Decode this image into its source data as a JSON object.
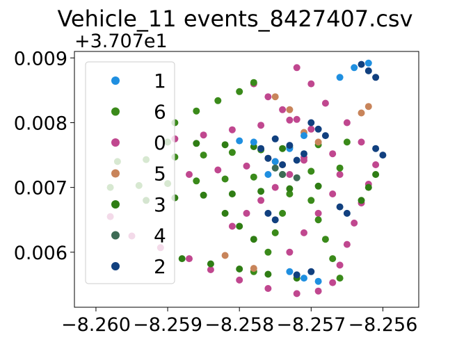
{
  "chart_data": {
    "type": "scatter",
    "title": "Vehicle_11 events_8427407.csv",
    "y_offset_label": "+3.707e1",
    "xlim": [
      -8.2603,
      -8.2555
    ],
    "ylim": [
      0.00515,
      0.0091
    ],
    "x_ticks": [
      -8.26,
      -8.259,
      -8.258,
      -8.257,
      -8.256
    ],
    "x_tick_labels": [
      "−8.260",
      "−8.259",
      "−8.258",
      "−8.257",
      "−8.256"
    ],
    "y_ticks": [
      0.006,
      0.007,
      0.008,
      0.009
    ],
    "y_tick_labels": [
      "0.006",
      "0.007",
      "0.008",
      "0.009"
    ],
    "legend_position": "upper-left",
    "legend": [
      {
        "label": "1",
        "color": "#1f8fe0"
      },
      {
        "label": "6",
        "color": "#3a8a1a"
      },
      {
        "label": "0",
        "color": "#c0478f"
      },
      {
        "label": "5",
        "color": "#c8845a"
      },
      {
        "label": "3",
        "color": "#2f7d14"
      },
      {
        "label": "4",
        "color": "#3d6b55"
      },
      {
        "label": "2",
        "color": "#11407f"
      }
    ],
    "series": [
      {
        "name": "0",
        "color": "#c0478f",
        "points": [
          [
            -8.2598,
            0.00655
          ],
          [
            -8.2595,
            0.00625
          ],
          [
            -8.2591,
            0.00607
          ],
          [
            -8.2587,
            0.0059
          ],
          [
            -8.2584,
            0.00573
          ],
          [
            -8.258,
            0.00557
          ],
          [
            -8.2576,
            0.00544
          ],
          [
            -8.2572,
            0.00536
          ],
          [
            -8.2569,
            0.0054
          ],
          [
            -8.2567,
            0.00553
          ],
          [
            -8.2566,
            0.0058
          ],
          [
            -8.2565,
            0.00612
          ],
          [
            -8.2564,
            0.00645
          ],
          [
            -8.2563,
            0.00676
          ],
          [
            -8.2562,
            0.00705
          ],
          [
            -8.2561,
            0.00735
          ],
          [
            -8.2563,
            0.0077
          ],
          [
            -8.2565,
            0.008
          ],
          [
            -8.2568,
            0.0083
          ],
          [
            -8.257,
            0.0086
          ],
          [
            -8.2572,
            0.00885
          ],
          [
            -8.2587,
            0.0072
          ],
          [
            -8.2583,
            0.00727
          ],
          [
            -8.2579,
            0.00733
          ],
          [
            -8.2575,
            0.0074
          ],
          [
            -8.2571,
            0.00746
          ],
          [
            -8.2567,
            0.00752
          ],
          [
            -8.2589,
            0.00775
          ],
          [
            -8.2585,
            0.00781
          ],
          [
            -8.2581,
            0.00789
          ],
          [
            -8.2577,
            0.00796
          ],
          [
            -8.2573,
            0.00804
          ],
          [
            -8.2581,
            0.0064
          ],
          [
            -8.2579,
            0.0066
          ],
          [
            -8.2577,
            0.0068
          ],
          [
            -8.2575,
            0.007
          ],
          [
            -8.2573,
            0.0072
          ],
          [
            -8.2571,
            0.00742
          ],
          [
            -8.2573,
            0.006
          ],
          [
            -8.2571,
            0.0063
          ],
          [
            -8.2569,
            0.0066
          ],
          [
            -8.2567,
            0.0069
          ],
          [
            -8.2566,
            0.0072
          ],
          [
            -8.2578,
            0.0086
          ],
          [
            -8.2576,
            0.0084
          ],
          [
            -8.2574,
            0.0082
          ],
          [
            -8.2572,
            0.00805
          ],
          [
            -8.257,
            0.0079
          ]
        ]
      },
      {
        "name": "6",
        "color": "#3a8a1a",
        "points": [
          [
            -8.2598,
            0.007
          ],
          [
            -8.2594,
            0.00703
          ],
          [
            -8.259,
            0.00706
          ],
          [
            -8.2586,
            0.0071
          ],
          [
            -8.2582,
            0.00713
          ],
          [
            -8.2578,
            0.00716
          ],
          [
            -8.2574,
            0.0072
          ],
          [
            -8.257,
            0.00725
          ],
          [
            -8.2566,
            0.0073
          ],
          [
            -8.2597,
            0.0074
          ],
          [
            -8.2593,
            0.00743
          ],
          [
            -8.2589,
            0.00747
          ],
          [
            -8.2585,
            0.0075
          ],
          [
            -8.2581,
            0.00754
          ],
          [
            -8.2577,
            0.00758
          ],
          [
            -8.2573,
            0.00762
          ],
          [
            -8.2569,
            0.00766
          ],
          [
            -8.2565,
            0.0077
          ],
          [
            -8.2589,
            0.008
          ],
          [
            -8.2586,
            0.00818
          ],
          [
            -8.2583,
            0.00834
          ],
          [
            -8.258,
            0.00848
          ],
          [
            -8.2578,
            0.00862
          ],
          [
            -8.2578,
            0.0057
          ],
          [
            -8.2576,
            0.006
          ],
          [
            -8.2575,
            0.0063
          ],
          [
            -8.2574,
            0.0066
          ],
          [
            -8.2573,
            0.0069
          ],
          [
            -8.2566,
            0.0056
          ],
          [
            -8.2567,
            0.0059
          ],
          [
            -8.2568,
            0.0062
          ],
          [
            -8.2569,
            0.0065
          ],
          [
            -8.257,
            0.0068
          ]
        ]
      },
      {
        "name": "3",
        "color": "#2f7d14",
        "points": [
          [
            -8.2593,
            0.0068
          ],
          [
            -8.2589,
            0.00684
          ],
          [
            -8.2585,
            0.00688
          ],
          [
            -8.2581,
            0.0069
          ],
          [
            -8.2577,
            0.00694
          ],
          [
            -8.2573,
            0.00698
          ],
          [
            -8.2569,
            0.00702
          ],
          [
            -8.259,
            0.0077
          ],
          [
            -8.2586,
            0.00768
          ],
          [
            -8.2582,
            0.00766
          ],
          [
            -8.2578,
            0.00763
          ],
          [
            -8.2574,
            0.0076
          ],
          [
            -8.2588,
            0.0059
          ],
          [
            -8.2584,
            0.00582
          ],
          [
            -8.258,
            0.00574
          ],
          [
            -8.2576,
            0.00566
          ],
          [
            -8.2572,
            0.0056
          ],
          [
            -8.2563,
            0.0068
          ],
          [
            -8.2562,
            0.007
          ],
          [
            -8.2561,
            0.0072
          ],
          [
            -8.2582,
            0.0066
          ],
          [
            -8.258,
            0.0064
          ],
          [
            -8.2578,
            0.0062
          ]
        ]
      },
      {
        "name": "5",
        "color": "#c8845a",
        "points": [
          [
            -8.2575,
            0.0084
          ],
          [
            -8.2573,
            0.0082
          ],
          [
            -8.2571,
            0.00785
          ],
          [
            -8.2569,
            0.0077
          ],
          [
            -8.2563,
            0.00815
          ],
          [
            -8.2562,
            0.00825
          ],
          [
            -8.2576,
            0.00745
          ],
          [
            -8.2574,
            0.00735
          ],
          [
            -8.2578,
            0.00575
          ],
          [
            -8.2582,
            0.00595
          ]
        ]
      },
      {
        "name": "1",
        "color": "#1f8fe0",
        "points": [
          [
            -8.2576,
            0.0072
          ],
          [
            -8.2575,
            0.0074
          ],
          [
            -8.2573,
            0.0076
          ],
          [
            -8.2571,
            0.0078
          ],
          [
            -8.2573,
            0.0057
          ],
          [
            -8.2571,
            0.0056
          ],
          [
            -8.2569,
            0.00555
          ],
          [
            -8.2566,
            0.0087
          ],
          [
            -8.2564,
            0.00885
          ],
          [
            -8.2562,
            0.00892
          ],
          [
            -8.2578,
            0.0077
          ],
          [
            -8.258,
            0.00772
          ]
        ]
      },
      {
        "name": "4",
        "color": "#3d6b55",
        "points": [
          [
            -8.2575,
            0.0073
          ],
          [
            -8.2574,
            0.0072
          ],
          [
            -8.2572,
            0.00715
          ]
        ]
      },
      {
        "name": "2",
        "color": "#11407f",
        "points": [
          [
            -8.2577,
            0.0076
          ],
          [
            -8.2576,
            0.00745
          ],
          [
            -8.2574,
            0.00735
          ],
          [
            -8.2572,
            0.00742
          ],
          [
            -8.2571,
            0.00752
          ],
          [
            -8.2573,
            0.00765
          ],
          [
            -8.2575,
            0.00775
          ],
          [
            -8.257,
            0.008
          ],
          [
            -8.2569,
            0.0079
          ],
          [
            -8.2568,
            0.0078
          ],
          [
            -8.2576,
            0.0066
          ],
          [
            -8.2575,
            0.0065
          ],
          [
            -8.257,
            0.0057
          ],
          [
            -8.2572,
            0.00565
          ],
          [
            -8.2563,
            0.0089
          ],
          [
            -8.2562,
            0.0088
          ],
          [
            -8.2561,
            0.0087
          ],
          [
            -8.256,
            0.0075
          ],
          [
            -8.2561,
            0.0076
          ],
          [
            -8.2566,
            0.0067
          ],
          [
            -8.2565,
            0.0066
          ]
        ]
      }
    ]
  }
}
